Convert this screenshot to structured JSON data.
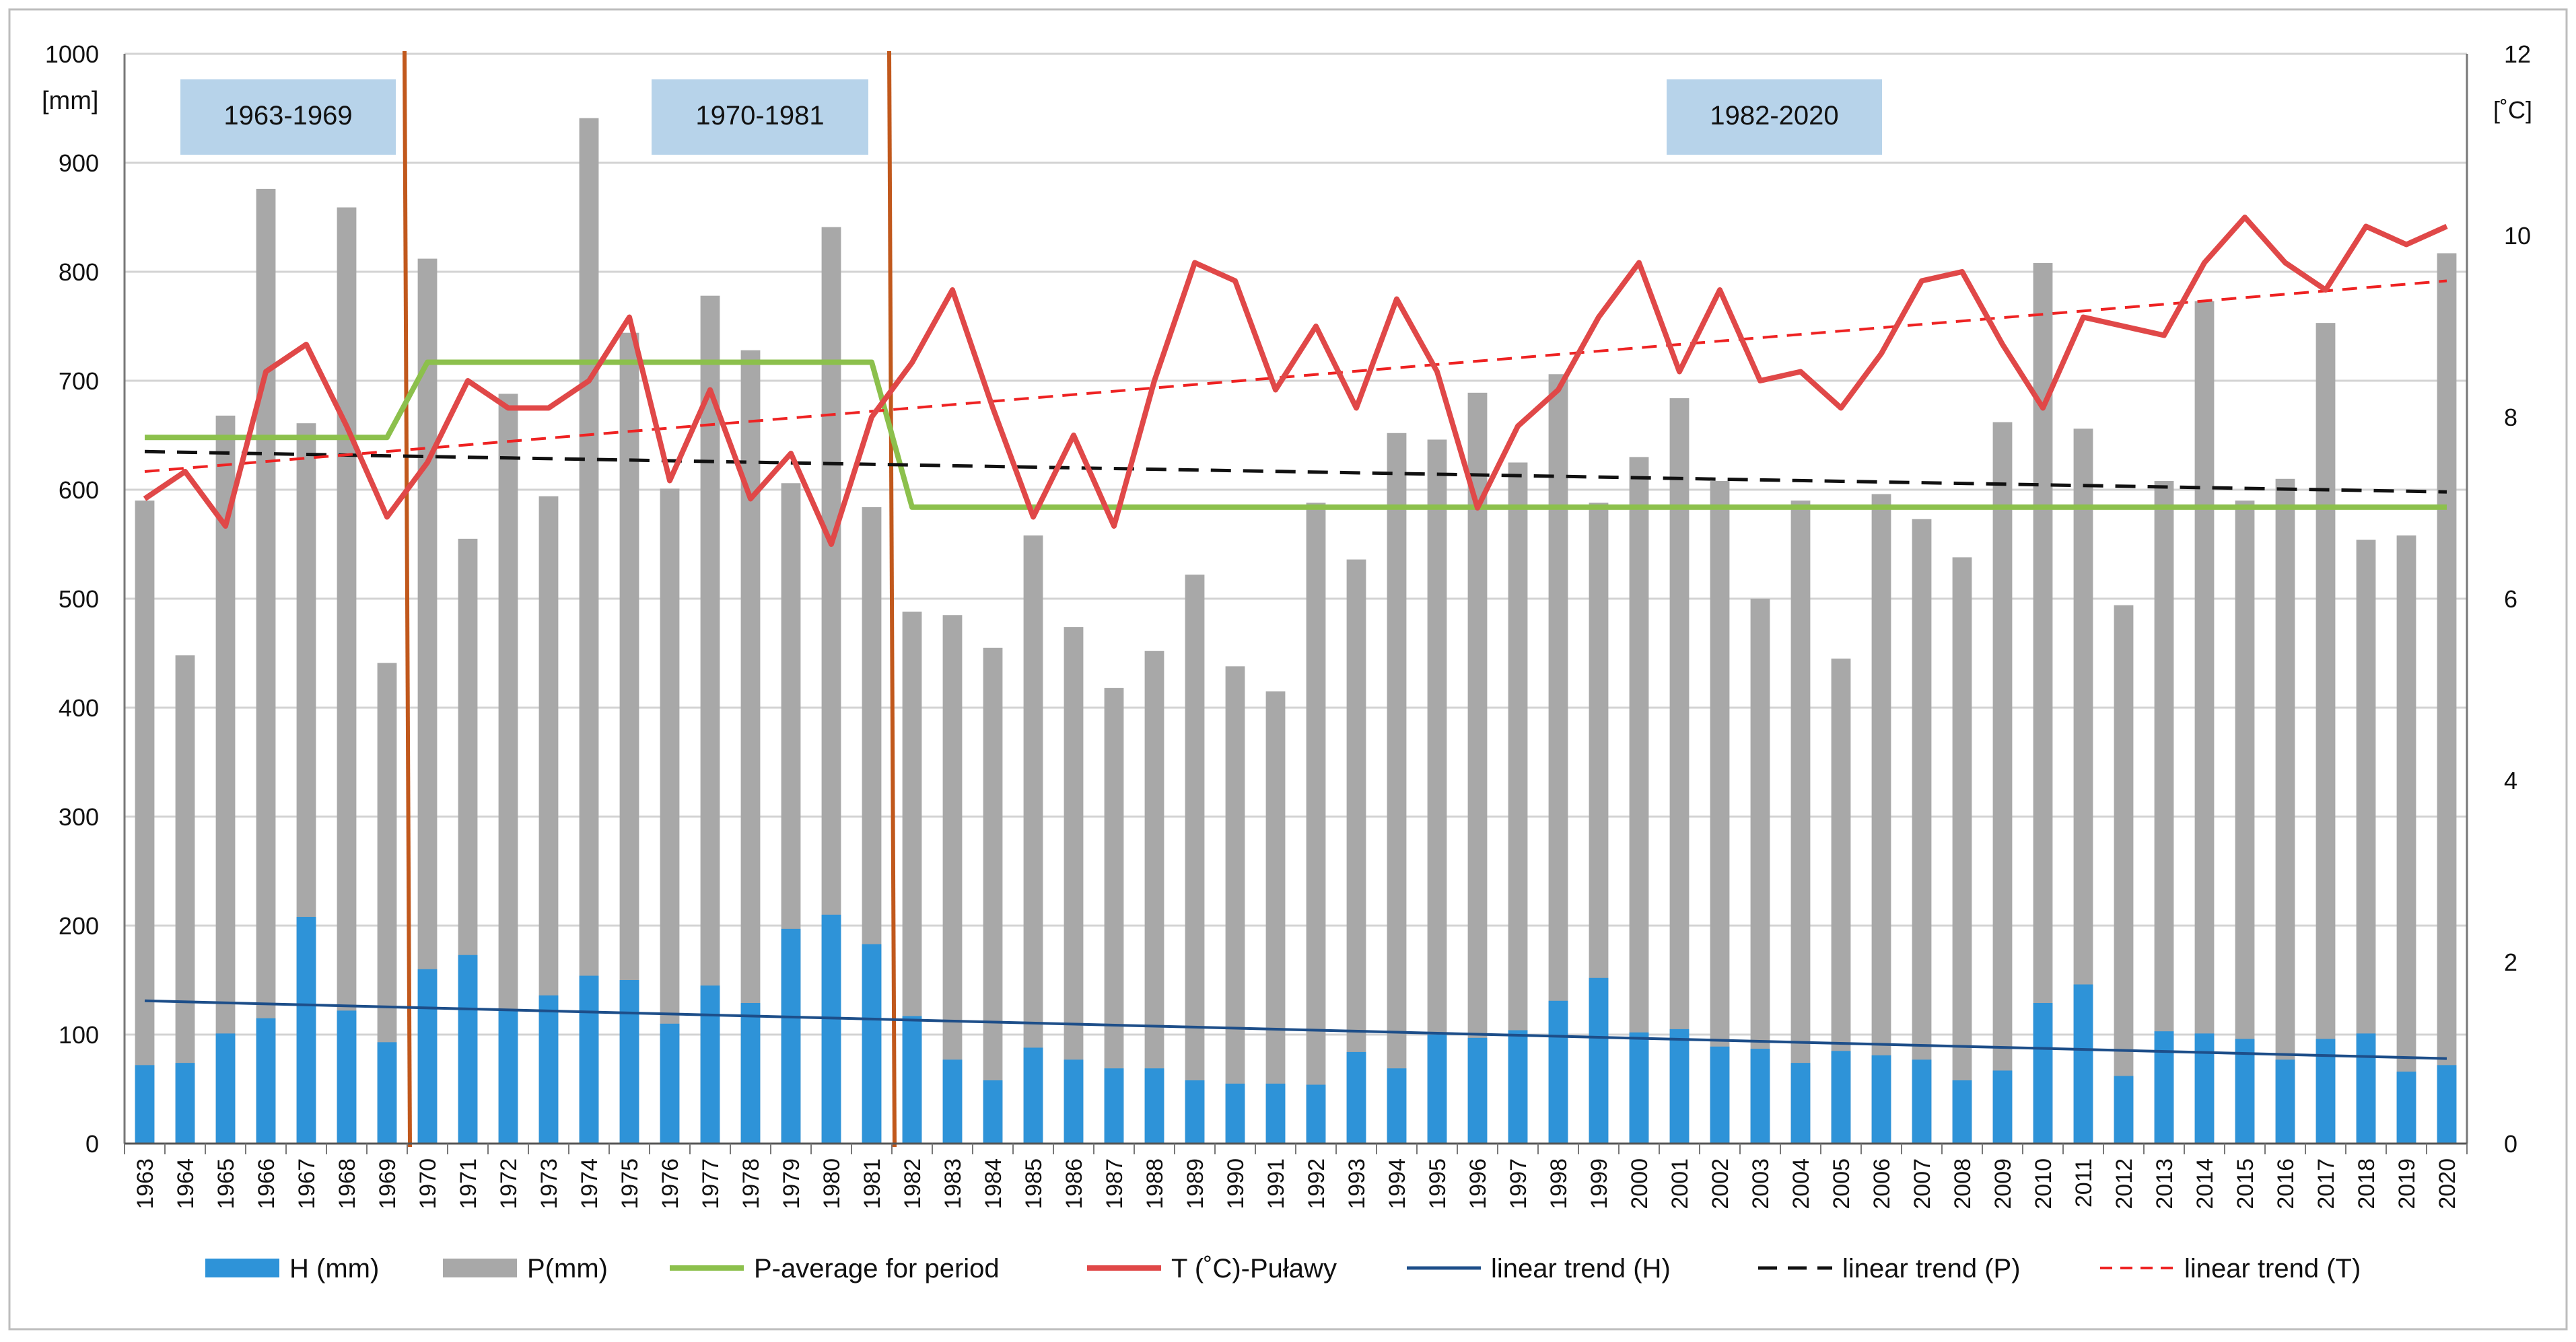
{
  "colors": {
    "H": "#2e93d8",
    "P": "#a8a8a8",
    "avg": "#8cc04c",
    "T": "#e04848",
    "trendH": "#1d4e89",
    "trendP": "#111111",
    "trendT": "#ee2222",
    "divider": "#c1581c",
    "period_box": "#b7d3ea",
    "grid": "#d3d3d3"
  },
  "chart_data": {
    "type": "bar",
    "title": "",
    "left_axis_unit": "[mm]",
    "right_axis_unit": "[˚C]",
    "ylim": [
      0,
      1000
    ],
    "y2lim": [
      0,
      12
    ],
    "left_ticks": [
      "0",
      "100",
      "200",
      "300",
      "400",
      "500",
      "600",
      "700",
      "800",
      "900",
      "1000"
    ],
    "right_ticks": [
      "0",
      "2",
      "4",
      "6",
      "8",
      "10",
      "12"
    ],
    "grid": true,
    "legend_position": "bottom",
    "categories": [
      "1963",
      "1964",
      "1965",
      "1966",
      "1967",
      "1968",
      "1969",
      "1970",
      "1971",
      "1972",
      "1973",
      "1974",
      "1975",
      "1976",
      "1977",
      "1978",
      "1979",
      "1980",
      "1981",
      "1982",
      "1983",
      "1984",
      "1985",
      "1986",
      "1987",
      "1988",
      "1989",
      "1990",
      "1991",
      "1992",
      "1993",
      "1994",
      "1995",
      "1996",
      "1997",
      "1998",
      "1999",
      "2000",
      "2001",
      "2002",
      "2003",
      "2004",
      "2005",
      "2006",
      "2007",
      "2008",
      "2009",
      "2010",
      "2011",
      "2012",
      "2013",
      "2014",
      "2015",
      "2016",
      "2017",
      "2018",
      "2019",
      "2020"
    ],
    "series": [
      {
        "name": "H (mm)",
        "type": "bar",
        "axis": "left",
        "values": [
          72,
          74,
          101,
          115,
          208,
          122,
          93,
          160,
          173,
          123,
          136,
          154,
          150,
          110,
          145,
          129,
          197,
          210,
          183,
          117,
          77,
          58,
          88,
          77,
          69,
          69,
          58,
          55,
          55,
          54,
          84,
          69,
          100,
          97,
          104,
          131,
          152,
          102,
          105,
          89,
          87,
          74,
          85,
          81,
          77,
          58,
          67,
          129,
          146,
          62,
          103,
          101,
          96,
          77,
          96,
          101,
          66,
          72
        ]
      },
      {
        "name": "P(mm)",
        "type": "bar",
        "axis": "left",
        "values": [
          590,
          448,
          668,
          876,
          661,
          859,
          441,
          812,
          555,
          688,
          594,
          941,
          744,
          601,
          778,
          728,
          606,
          841,
          584,
          488,
          485,
          455,
          558,
          474,
          418,
          452,
          522,
          438,
          415,
          588,
          536,
          652,
          646,
          689,
          625,
          706,
          588,
          630,
          684,
          608,
          500,
          590,
          445,
          596,
          573,
          538,
          662,
          808,
          656,
          494,
          608,
          773,
          590,
          610,
          753,
          554,
          558,
          817
        ]
      },
      {
        "name": "P-average for period",
        "type": "line",
        "axis": "left",
        "values": [
          648,
          648,
          648,
          648,
          648,
          648,
          648,
          717,
          717,
          717,
          717,
          717,
          717,
          717,
          717,
          717,
          717,
          717,
          717,
          584,
          584,
          584,
          584,
          584,
          584,
          584,
          584,
          584,
          584,
          584,
          584,
          584,
          584,
          584,
          584,
          584,
          584,
          584,
          584,
          584,
          584,
          584,
          584,
          584,
          584,
          584,
          584,
          584,
          584,
          584,
          584,
          584,
          584,
          584,
          584,
          584,
          584,
          584
        ]
      },
      {
        "name": "T (˚C)-Puławy",
        "type": "line",
        "axis": "right",
        "values": [
          7.1,
          7.4,
          6.8,
          8.5,
          8.8,
          7.9,
          6.9,
          7.5,
          8.4,
          8.1,
          8.1,
          8.4,
          9.1,
          7.3,
          8.3,
          7.1,
          7.6,
          6.6,
          8.0,
          8.6,
          9.4,
          8.1,
          6.9,
          7.8,
          6.8,
          8.4,
          9.7,
          9.5,
          8.3,
          9.0,
          8.1,
          9.3,
          8.5,
          7.0,
          7.9,
          8.3,
          9.1,
          9.7,
          8.5,
          9.4,
          8.4,
          8.5,
          8.1,
          8.7,
          9.5,
          9.6,
          8.8,
          8.1,
          9.1,
          9.0,
          8.9,
          9.7,
          10.2,
          9.7,
          9.4,
          10.1,
          9.9,
          10.1
        ]
      },
      {
        "name": "linear trend (H)",
        "type": "trend",
        "axis": "left",
        "start": 131,
        "end": 78
      },
      {
        "name": "linear trend (P)",
        "type": "trend",
        "axis": "left",
        "start": 635,
        "end": 598
      },
      {
        "name": "linear trend (T)",
        "type": "trend",
        "axis": "right",
        "start": 7.4,
        "end": 9.5
      }
    ],
    "periods": [
      {
        "label": "1963-1969",
        "from": "1963",
        "to": "1969"
      },
      {
        "label": "1970-1981",
        "from": "1970",
        "to": "1981"
      },
      {
        "label": "1982-2020",
        "from": "1982",
        "to": "2020"
      }
    ],
    "dividers": [
      "1969.5",
      "1981.5"
    ],
    "legend": [
      "H (mm)",
      "P(mm)",
      "P-average for period",
      "T (˚C)-Puławy",
      "linear trend (H)",
      "linear trend (P)",
      "linear trend (T)"
    ]
  }
}
